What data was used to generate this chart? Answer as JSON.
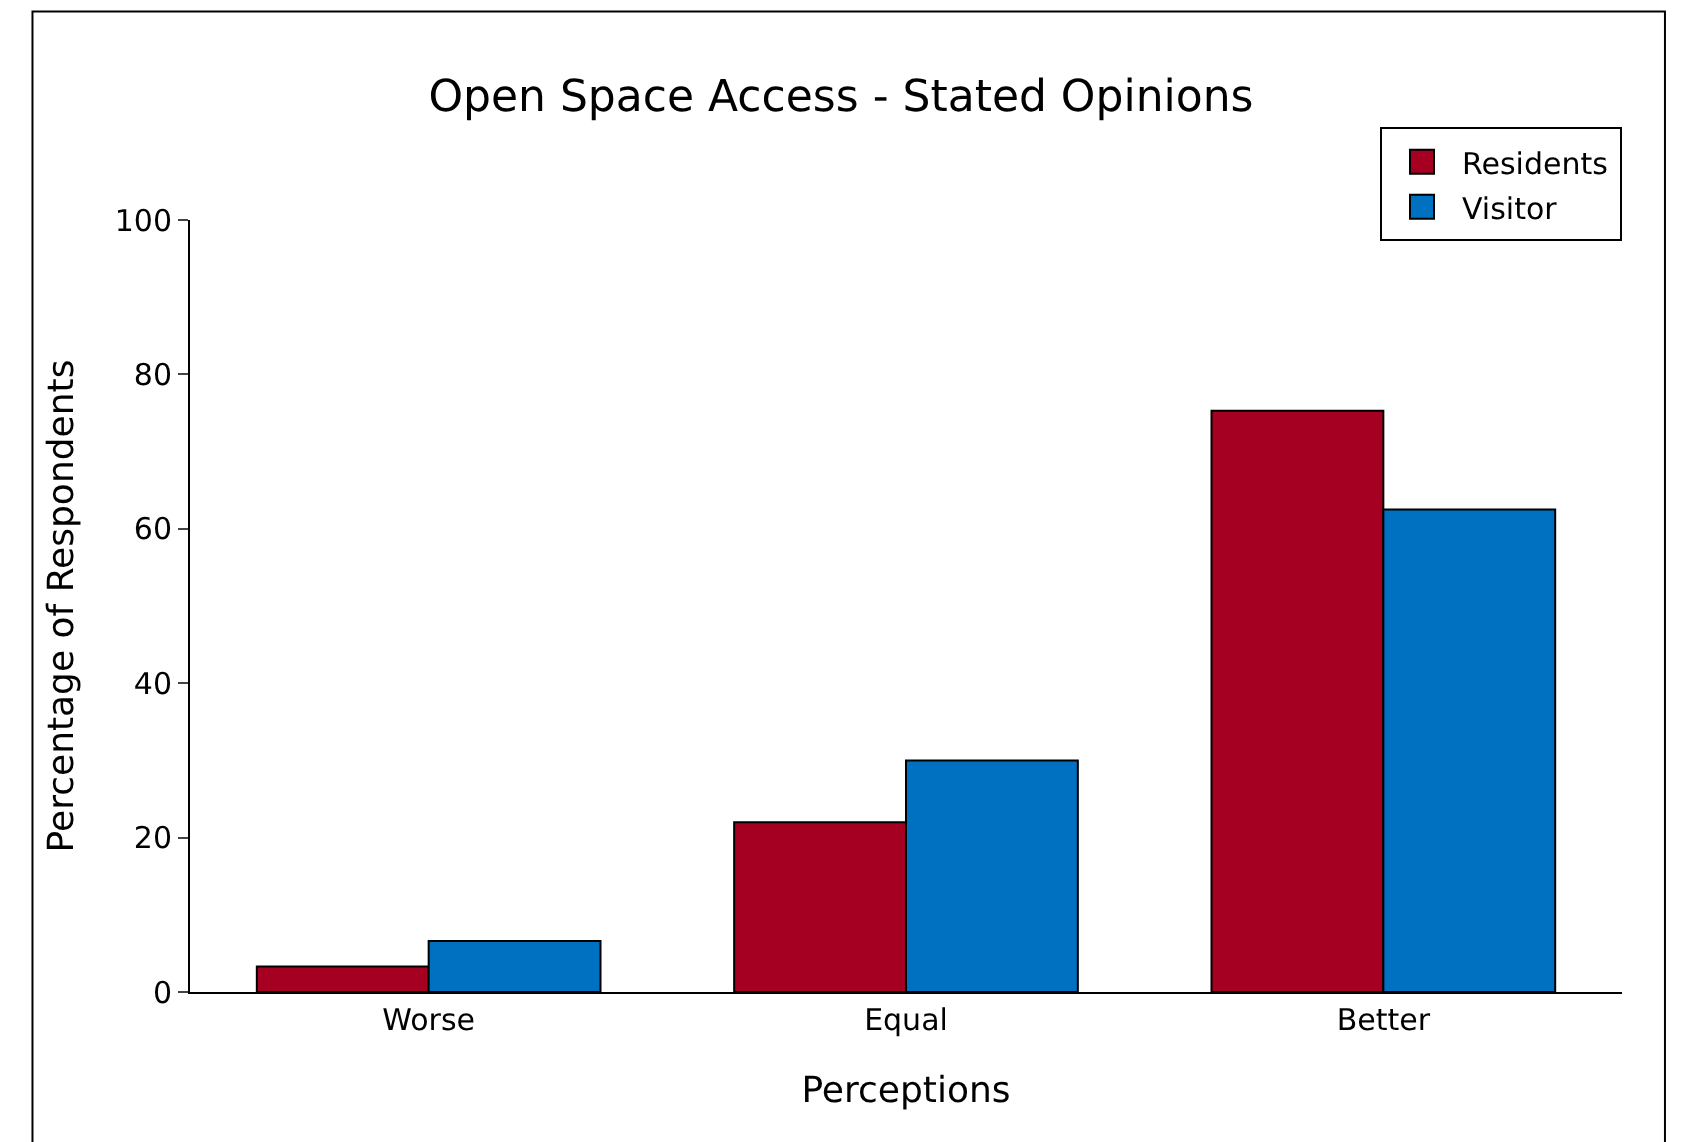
{
  "chart_data": {
    "type": "bar",
    "title": "Open Space Access - Stated Opinions",
    "xlabel": "Perceptions",
    "ylabel": "Percentage of Respondents",
    "categories": [
      "Worse",
      "Equal",
      "Better"
    ],
    "series": [
      {
        "name": "Residents",
        "color": "#a50021",
        "values": [
          3.3,
          22,
          75.3
        ]
      },
      {
        "name": "Visitor",
        "color": "#0070c0",
        "values": [
          6.6,
          30,
          62.5
        ]
      }
    ],
    "ylim": [
      0,
      100
    ],
    "yticks": [
      0,
      20,
      40,
      60,
      80,
      100
    ],
    "grid": false,
    "legend": "top right"
  }
}
